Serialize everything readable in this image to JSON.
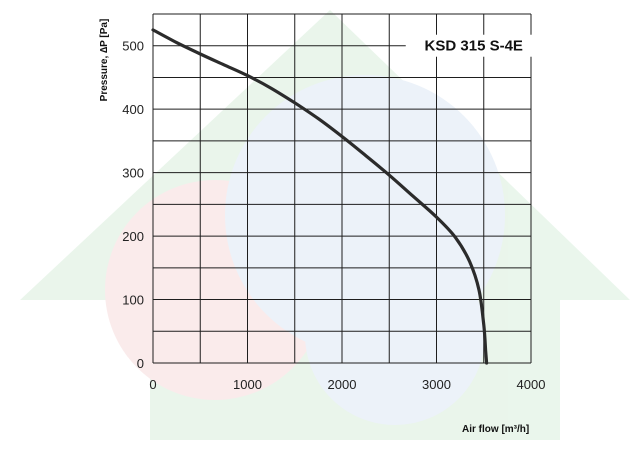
{
  "colors": {
    "curve": "#2b2b2b",
    "grid": "#1e1e1e",
    "watermark_green": "#d9eedc",
    "watermark_red": "#f6dcdc",
    "watermark_blue": "#dde8f5"
  },
  "chart_data": {
    "type": "line",
    "title": "",
    "annotation": "KSD 315 S-4E",
    "xlabel": "Air flow [m³/h]",
    "ylabel": "Pressure, ∆P [Pa]",
    "xlim": [
      0,
      4000
    ],
    "ylim": [
      0,
      550
    ],
    "grid": true,
    "legend": "none",
    "x_ticks": [
      0,
      1000,
      2000,
      3000,
      4000
    ],
    "y_ticks": [
      0,
      100,
      200,
      300,
      400,
      500
    ],
    "x_tick_labels": [
      "0",
      "1000",
      "2000",
      "3000",
      "4000"
    ],
    "y_tick_labels": [
      "0",
      "100",
      "200",
      "300",
      "400",
      "500"
    ],
    "series": [
      {
        "x": [
          0,
          250,
          500,
          750,
          1000,
          1250,
          1500,
          1750,
          2000,
          2250,
          2500,
          2750,
          3000,
          3200,
          3350,
          3450,
          3500,
          3520,
          3530
        ],
        "y": [
          525,
          505,
          487,
          470,
          453,
          433,
          410,
          385,
          357,
          327,
          296,
          263,
          230,
          198,
          160,
          115,
          60,
          20,
          0
        ]
      }
    ]
  }
}
